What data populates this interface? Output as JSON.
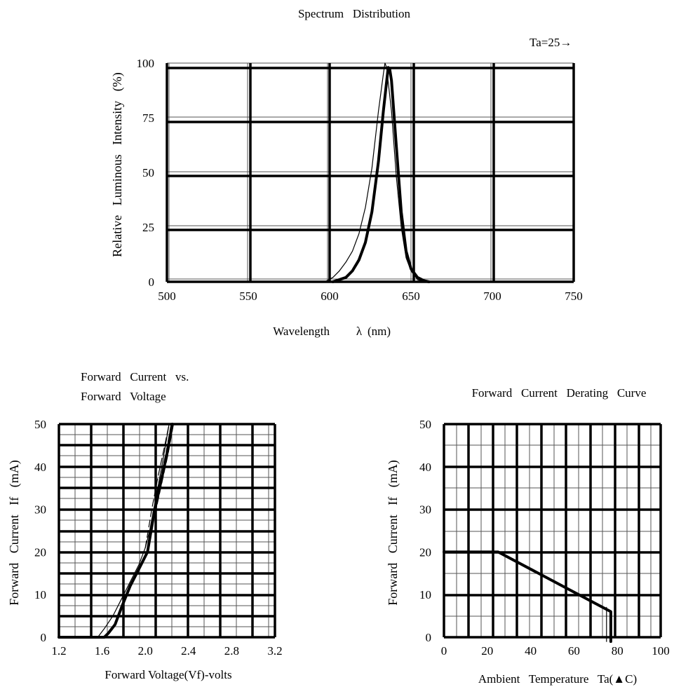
{
  "chart_data": [
    {
      "type": "line",
      "title": "Spectrum   Distribution",
      "annotation": "Ta=25→",
      "ylabel": "Relative   Luminous   Intensity   (%)",
      "xlabel": "Wavelength",
      "xlabel_unit": "(nm)",
      "xlim": [
        500,
        750
      ],
      "ylim": [
        0,
        100
      ],
      "xticks": [
        500,
        550,
        600,
        650,
        700,
        750
      ],
      "xtick_labels": [
        "500",
        "550",
        "600",
        "650",
        "700",
        "750"
      ],
      "yticks": [
        0,
        25,
        50,
        75,
        100
      ],
      "ytick_labels": [
        "0",
        "25",
        "50",
        "75",
        "100"
      ],
      "grid": true,
      "series": [
        {
          "style": "thick",
          "x": [
            602,
            606,
            610,
            614,
            618,
            622,
            626,
            630,
            633,
            636,
            637,
            638,
            641,
            644,
            647,
            650,
            654,
            658,
            661
          ],
          "y": [
            0,
            1,
            2,
            5,
            10,
            18,
            32,
            55,
            78,
            98,
            97,
            92,
            62,
            32,
            14,
            6,
            2,
            0.5,
            0
          ]
        },
        {
          "style": "thin",
          "x": [
            597,
            602,
            606,
            610,
            614,
            618,
            622,
            626,
            630,
            633,
            634,
            635,
            638,
            641,
            644,
            647,
            650,
            654,
            658
          ],
          "y": [
            0,
            2,
            5,
            9,
            14,
            22,
            34,
            52,
            78,
            95,
            100,
            98,
            78,
            48,
            25,
            11,
            5,
            1,
            0
          ]
        }
      ]
    },
    {
      "type": "line",
      "title_lines": [
        "Forward   Current   vs.",
        "Forward   Voltage"
      ],
      "ylabel": "Forward   Current   If   (mA)",
      "xlabel": "Forward Voltage(Vf)-volts",
      "xlim": [
        1.2,
        3.2
      ],
      "ylim": [
        0,
        50
      ],
      "xticks": [
        1.2,
        1.6,
        2.0,
        2.4,
        2.8,
        3.2
      ],
      "xtick_labels": [
        "1.2",
        "1.6",
        "2.0",
        "2.4",
        "2.8",
        "3.2"
      ],
      "yticks": [
        0,
        10,
        20,
        30,
        40,
        50
      ],
      "ytick_labels": [
        "0",
        "10",
        "20",
        "30",
        "40",
        "50"
      ],
      "grid": true,
      "series": [
        {
          "style": "thick",
          "x": [
            1.2,
            1.62,
            1.66,
            1.72,
            1.78,
            1.86,
            1.94,
            2.02,
            2.08,
            2.14,
            2.2,
            2.25
          ],
          "y": [
            0,
            0,
            1,
            3,
            7,
            12,
            16,
            20,
            29,
            36,
            43,
            50
          ]
        },
        {
          "style": "thick-dash",
          "x": [
            2.08,
            2.14,
            2.2,
            2.25
          ],
          "y": [
            29,
            36,
            43,
            50
          ]
        },
        {
          "style": "thin",
          "x": [
            1.56,
            1.62,
            1.7,
            1.78,
            1.86,
            1.94,
            2.0,
            2.04,
            2.1,
            2.16,
            2.22
          ],
          "y": [
            0,
            2,
            5,
            9,
            13,
            17,
            21,
            25,
            33,
            41,
            50
          ]
        },
        {
          "style": "thin-dash",
          "x": [
            2.0,
            2.06,
            2.12,
            2.18,
            2.22
          ],
          "y": [
            21,
            30,
            38,
            45,
            50
          ]
        }
      ]
    },
    {
      "type": "line",
      "title": "Forward   Current   Derating   Curve",
      "ylabel": "Forward   Current   If   (mA)",
      "xlabel": "Ambient   Temperature   Ta(▲C)",
      "xlim": [
        0,
        100
      ],
      "ylim": [
        0,
        50
      ],
      "xticks": [
        0,
        20,
        40,
        60,
        80,
        100
      ],
      "xtick_labels": [
        "0",
        "20",
        "40",
        "60",
        "80",
        "100"
      ],
      "yticks": [
        0,
        10,
        20,
        30,
        40,
        50
      ],
      "ytick_labels": [
        "0",
        "10",
        "20",
        "30",
        "40",
        "50"
      ],
      "grid": true,
      "series": [
        {
          "style": "thick",
          "x": [
            0,
            25,
            77,
            77
          ],
          "y": [
            20,
            20,
            6,
            -1
          ]
        },
        {
          "style": "thin",
          "x": [
            75,
            75
          ],
          "y": [
            7,
            -1
          ]
        }
      ]
    }
  ]
}
